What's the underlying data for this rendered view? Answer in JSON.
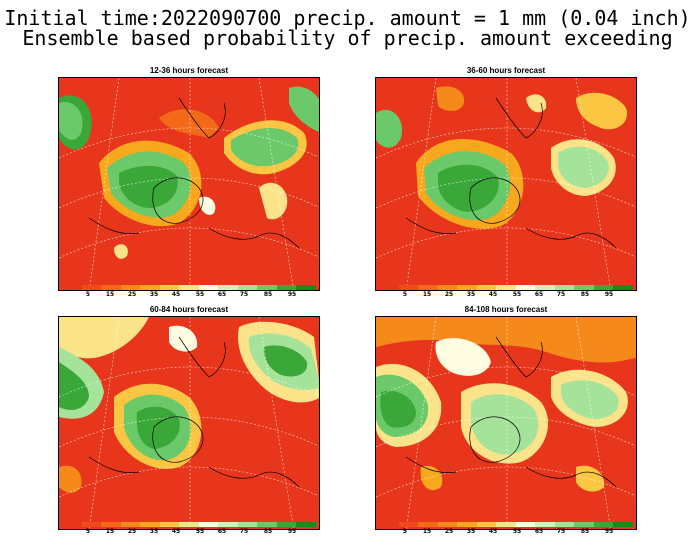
{
  "header": {
    "line1": "Initial time:2022090700 precip. amount = 1 mm (0.04 inch)",
    "line2": "Ensemble based probability of precip. amount exceeding"
  },
  "panels": [
    {
      "title": "12-36 hours forecast"
    },
    {
      "title": "36-60 hours forecast"
    },
    {
      "title": "60-84 hours forecast"
    },
    {
      "title": "84-108 hours forecast"
    }
  ],
  "colorbar": {
    "colors": [
      "#e8361c",
      "#f04a1a",
      "#f26a18",
      "#f5891a",
      "#f8a81c",
      "#fbc641",
      "#fbe38a",
      "#fefde2",
      "#d0f0bc",
      "#a6e39a",
      "#6cc96a",
      "#3aa838",
      "#1a8a1c"
    ],
    "labels": [
      "5",
      "15",
      "25",
      "35",
      "45",
      "55",
      "65",
      "75",
      "85",
      "95"
    ]
  }
}
